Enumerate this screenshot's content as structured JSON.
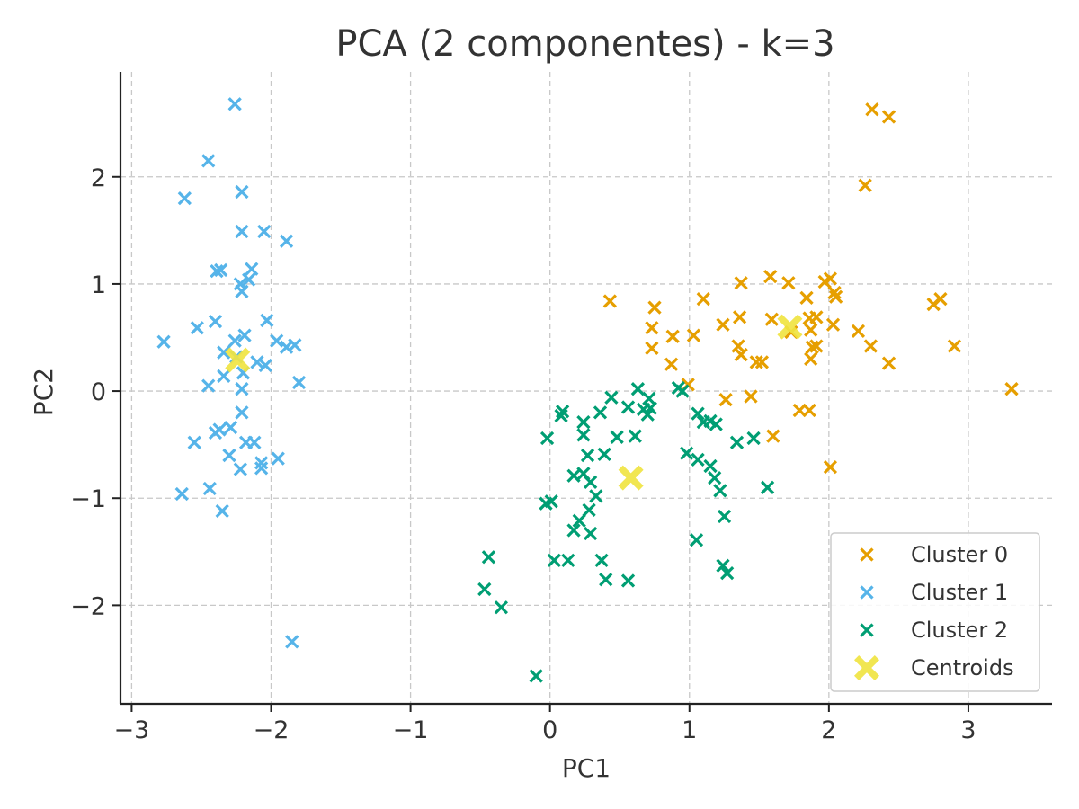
{
  "chart_data": {
    "type": "scatter",
    "title": "PCA (2 componentes) - k=3",
    "xlabel": "PC1",
    "ylabel": "PC2",
    "xlim": [
      -3.08,
      3.6
    ],
    "ylim": [
      -2.92,
      2.98
    ],
    "xticks": [
      -3,
      -2,
      -1,
      0,
      1,
      2,
      3
    ],
    "yticks": [
      -2,
      -1,
      0,
      1,
      2
    ],
    "xtick_labels": [
      "−3",
      "−2",
      "−1",
      "0",
      "1",
      "2",
      "3"
    ],
    "ytick_labels": [
      "−2",
      "−1",
      "0",
      "1",
      "2"
    ],
    "grid": true,
    "legend_position": "bottom-right",
    "series": [
      {
        "name": "Cluster 0",
        "marker": "x",
        "color": "#E69F00",
        "points": [
          [
            2.31,
            2.63
          ],
          [
            2.43,
            2.56
          ],
          [
            2.26,
            1.92
          ],
          [
            0.43,
            0.84
          ],
          [
            0.75,
            0.78
          ],
          [
            0.73,
            0.59
          ],
          [
            0.73,
            0.4
          ],
          [
            0.88,
            0.51
          ],
          [
            0.87,
            0.25
          ],
          [
            1.03,
            0.52
          ],
          [
            1.1,
            0.86
          ],
          [
            1.24,
            0.62
          ],
          [
            1.37,
            1.01
          ],
          [
            1.36,
            0.69
          ],
          [
            1.35,
            0.42
          ],
          [
            1.37,
            0.34
          ],
          [
            1.48,
            0.27
          ],
          [
            1.52,
            0.27
          ],
          [
            1.58,
            1.07
          ],
          [
            1.59,
            0.67
          ],
          [
            1.71,
            1.01
          ],
          [
            1.73,
            0.55
          ],
          [
            1.84,
            0.87
          ],
          [
            1.86,
            0.68
          ],
          [
            1.91,
            0.69
          ],
          [
            1.87,
            0.57
          ],
          [
            1.88,
            0.41
          ],
          [
            1.91,
            0.42
          ],
          [
            1.87,
            0.3
          ],
          [
            1.97,
            1.02
          ],
          [
            2.01,
            1.05
          ],
          [
            2.03,
            0.62
          ],
          [
            2.04,
            0.92
          ],
          [
            2.05,
            0.88
          ],
          [
            2.21,
            0.56
          ],
          [
            2.3,
            0.42
          ],
          [
            2.43,
            0.26
          ],
          [
            2.75,
            0.81
          ],
          [
            2.8,
            0.86
          ],
          [
            2.9,
            0.42
          ],
          [
            3.31,
            0.02
          ],
          [
            0.99,
            0.06
          ],
          [
            1.26,
            -0.08
          ],
          [
            1.44,
            -0.05
          ],
          [
            1.6,
            -0.42
          ],
          [
            1.79,
            -0.18
          ],
          [
            1.86,
            -0.18
          ],
          [
            2.01,
            -0.71
          ]
        ]
      },
      {
        "name": "Cluster 1",
        "marker": "x",
        "color": "#56B4E9",
        "points": [
          [
            -2.26,
            2.68
          ],
          [
            -2.45,
            2.15
          ],
          [
            -2.62,
            1.8
          ],
          [
            -2.21,
            1.86
          ],
          [
            -2.21,
            1.49
          ],
          [
            -2.05,
            1.49
          ],
          [
            -1.89,
            1.4
          ],
          [
            -2.39,
            1.12
          ],
          [
            -2.36,
            1.13
          ],
          [
            -2.14,
            1.14
          ],
          [
            -2.16,
            1.04
          ],
          [
            -2.22,
            1.0
          ],
          [
            -2.21,
            0.93
          ],
          [
            -2.03,
            0.66
          ],
          [
            -2.4,
            0.65
          ],
          [
            -2.53,
            0.59
          ],
          [
            -2.77,
            0.46
          ],
          [
            -2.19,
            0.52
          ],
          [
            -2.26,
            0.47
          ],
          [
            -1.96,
            0.47
          ],
          [
            -1.89,
            0.41
          ],
          [
            -1.83,
            0.43
          ],
          [
            -2.34,
            0.36
          ],
          [
            -2.25,
            0.32
          ],
          [
            -2.1,
            0.27
          ],
          [
            -2.2,
            0.17
          ],
          [
            -2.34,
            0.14
          ],
          [
            -2.04,
            0.24
          ],
          [
            -1.8,
            0.08
          ],
          [
            -2.45,
            0.05
          ],
          [
            -2.21,
            0.02
          ],
          [
            -2.21,
            -0.2
          ],
          [
            -2.37,
            -0.36
          ],
          [
            -2.29,
            -0.34
          ],
          [
            -2.4,
            -0.39
          ],
          [
            -2.55,
            -0.48
          ],
          [
            -2.18,
            -0.48
          ],
          [
            -2.12,
            -0.48
          ],
          [
            -2.3,
            -0.6
          ],
          [
            -2.07,
            -0.67
          ],
          [
            -2.07,
            -0.72
          ],
          [
            -1.95,
            -0.63
          ],
          [
            -2.22,
            -0.73
          ],
          [
            -2.44,
            -0.91
          ],
          [
            -2.64,
            -0.96
          ],
          [
            -2.35,
            -1.12
          ],
          [
            -1.85,
            -2.34
          ]
        ]
      },
      {
        "name": "Cluster 2",
        "marker": "x",
        "color": "#009E73",
        "points": [
          [
            0.09,
            -0.19
          ],
          [
            0.08,
            -0.23
          ],
          [
            0.24,
            -0.29
          ],
          [
            0.24,
            -0.41
          ],
          [
            0.36,
            -0.2
          ],
          [
            0.44,
            -0.06
          ],
          [
            0.56,
            -0.15
          ],
          [
            0.63,
            0.02
          ],
          [
            0.67,
            -0.17
          ],
          [
            0.7,
            -0.22
          ],
          [
            0.72,
            -0.16
          ],
          [
            0.71,
            -0.07
          ],
          [
            0.92,
            0.03
          ],
          [
            0.95,
            0.0
          ],
          [
            1.06,
            -0.21
          ],
          [
            1.1,
            -0.29
          ],
          [
            1.15,
            -0.28
          ],
          [
            1.19,
            -0.31
          ],
          [
            0.61,
            -0.42
          ],
          [
            0.48,
            -0.43
          ],
          [
            0.39,
            -0.59
          ],
          [
            0.27,
            -0.6
          ],
          [
            0.17,
            -0.79
          ],
          [
            0.24,
            -0.77
          ],
          [
            0.29,
            -0.85
          ],
          [
            0.33,
            -0.98
          ],
          [
            0.28,
            -1.11
          ],
          [
            0.21,
            -1.21
          ],
          [
            0.98,
            -0.58
          ],
          [
            1.06,
            -0.64
          ],
          [
            1.15,
            -0.7
          ],
          [
            1.18,
            -0.81
          ],
          [
            1.22,
            -0.93
          ],
          [
            1.34,
            -0.48
          ],
          [
            1.46,
            -0.44
          ],
          [
            1.56,
            -0.9
          ],
          [
            -0.02,
            -0.44
          ],
          [
            -0.03,
            -1.05
          ],
          [
            0.01,
            -1.03
          ],
          [
            0.17,
            -1.3
          ],
          [
            0.29,
            -1.33
          ],
          [
            0.37,
            -1.58
          ],
          [
            0.4,
            -1.76
          ],
          [
            0.56,
            -1.77
          ],
          [
            0.03,
            -1.58
          ],
          [
            0.13,
            -1.58
          ],
          [
            1.05,
            -1.39
          ],
          [
            1.25,
            -1.17
          ],
          [
            1.24,
            -1.63
          ],
          [
            1.27,
            -1.7
          ],
          [
            -0.44,
            -1.55
          ],
          [
            -0.47,
            -1.85
          ],
          [
            -0.35,
            -2.02
          ],
          [
            -0.1,
            -2.66
          ]
        ]
      },
      {
        "name": "Centroids",
        "marker": "X",
        "color": "#F0E442",
        "points": [
          [
            1.72,
            0.6
          ],
          [
            -2.24,
            0.29
          ],
          [
            0.58,
            -0.81
          ]
        ]
      }
    ]
  }
}
